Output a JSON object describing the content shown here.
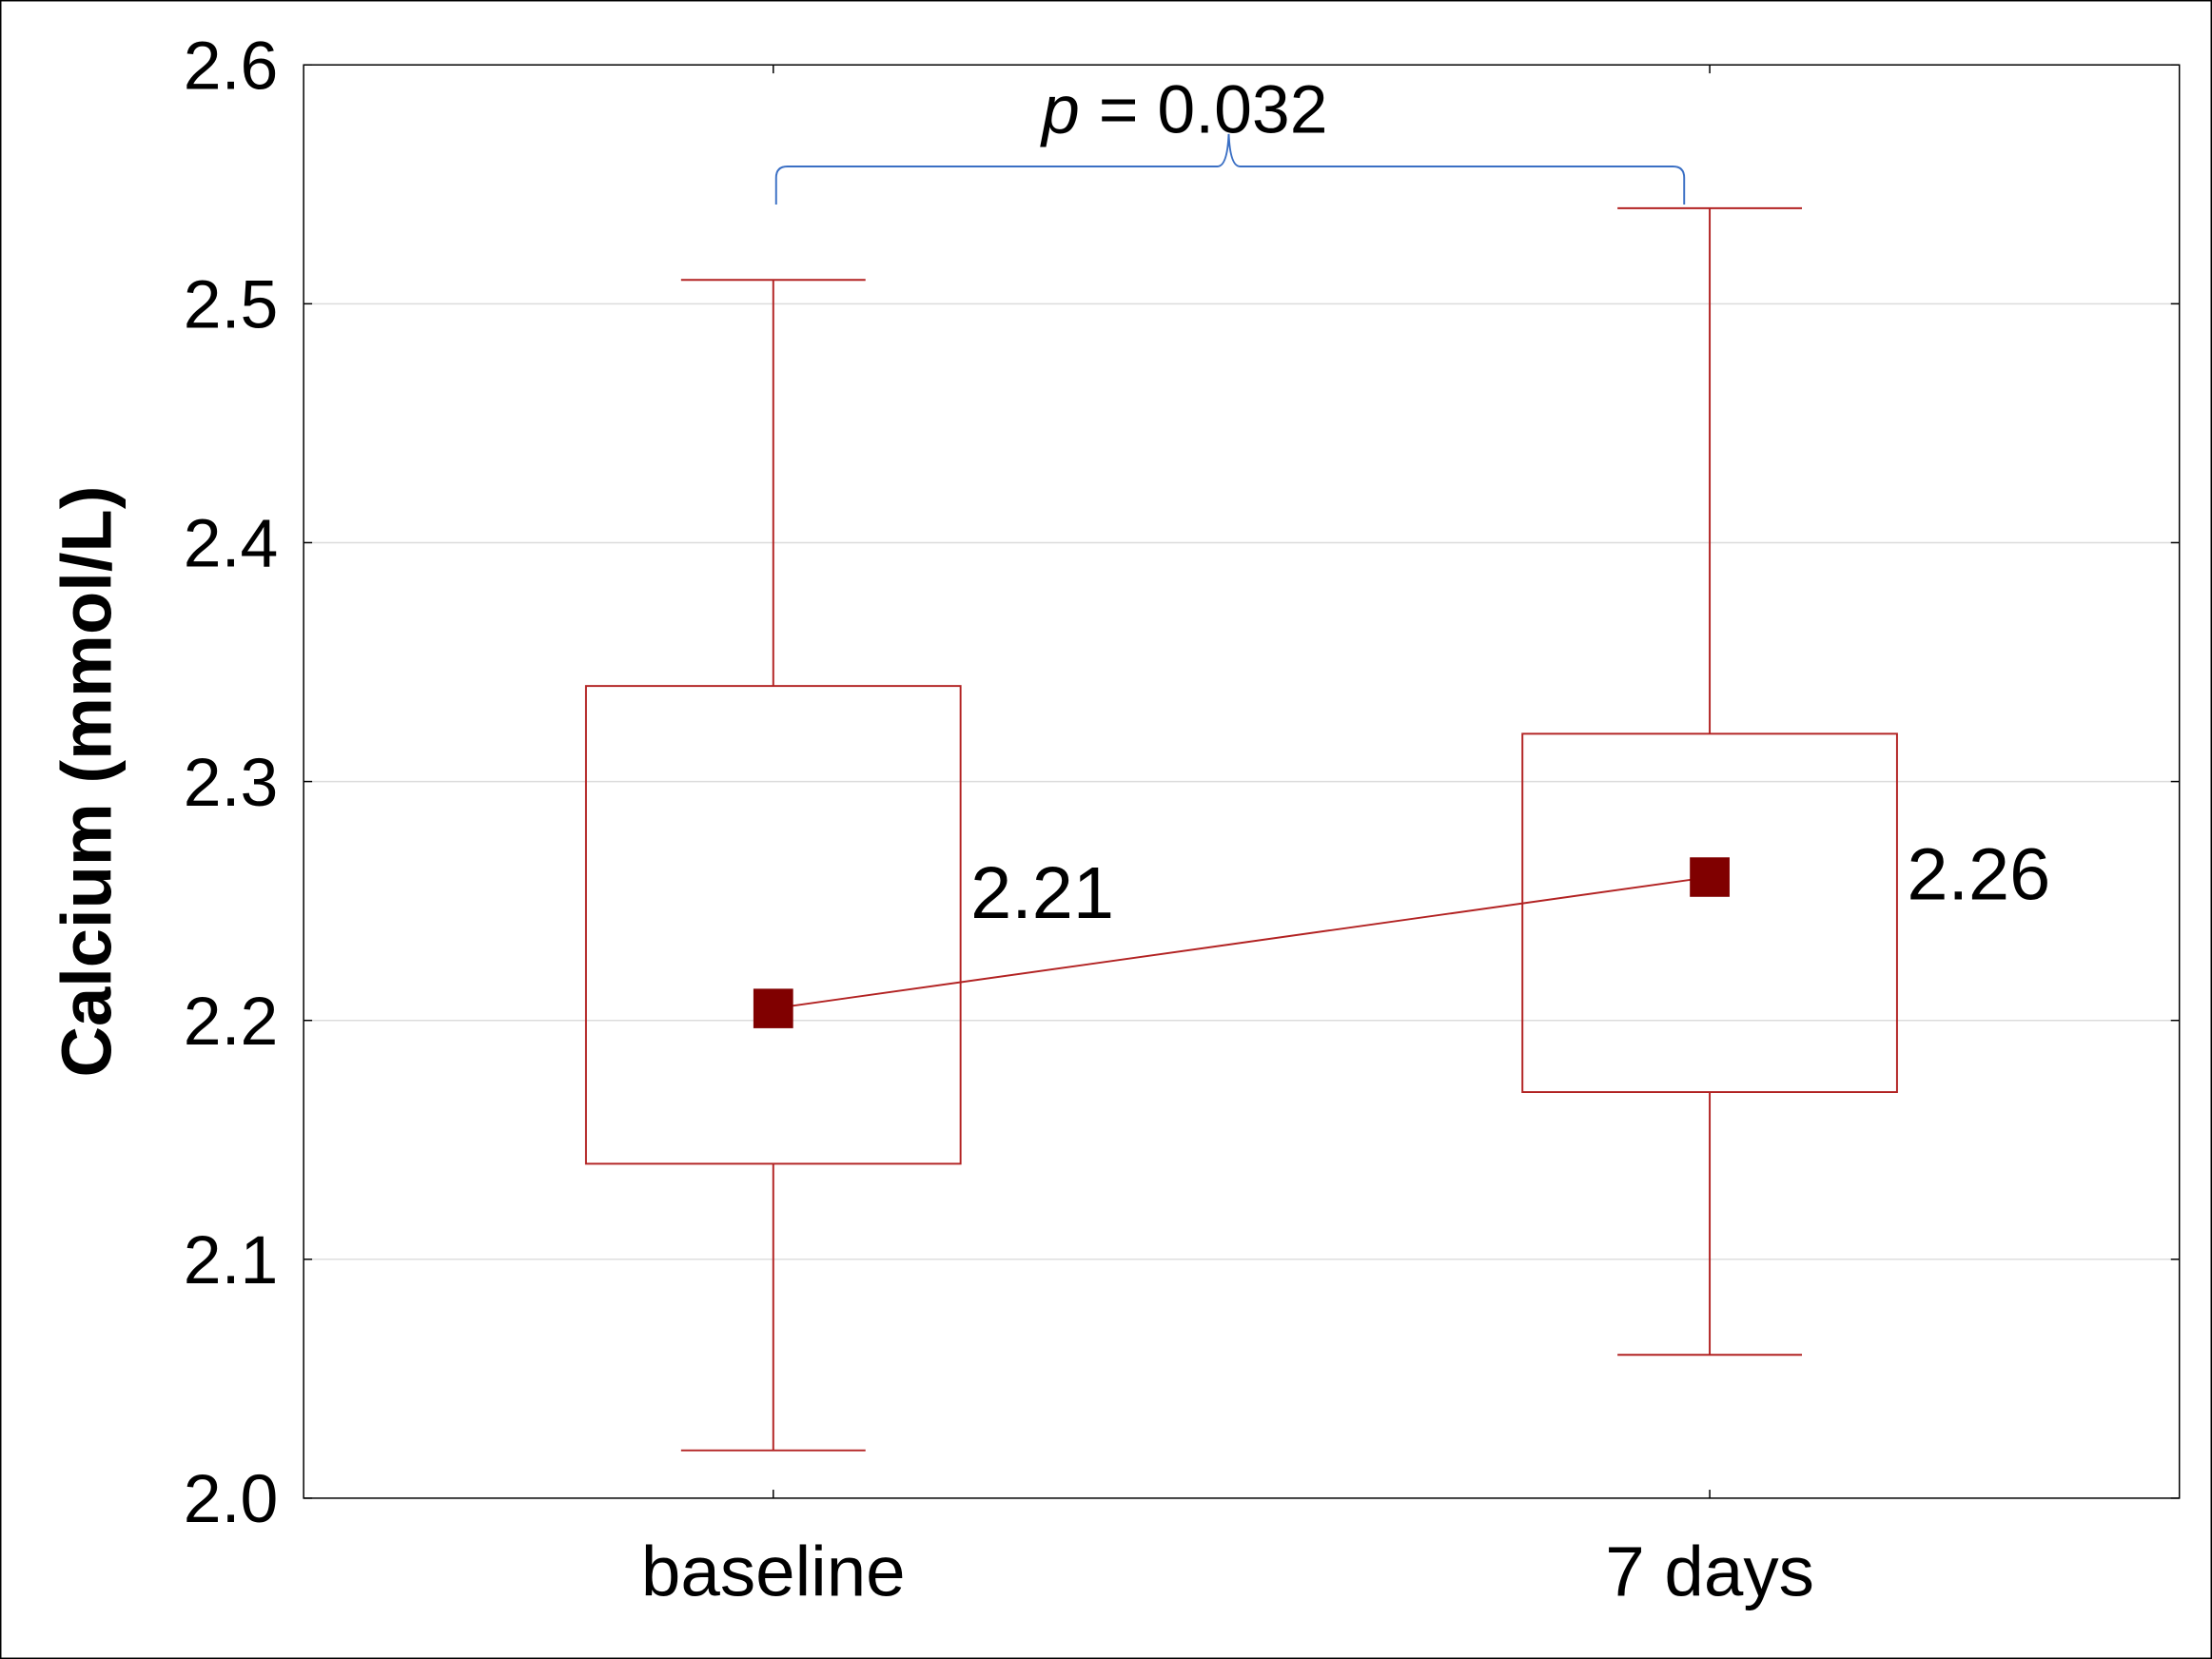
{
  "chart_data": {
    "type": "box",
    "title": "",
    "xlabel": "",
    "ylabel": "Calcium (mmol/L)",
    "ylim": [
      2.0,
      2.6
    ],
    "yticks": [
      "2.0",
      "2.1",
      "2.2",
      "2.3",
      "2.4",
      "2.5",
      "2.6"
    ],
    "ytick_values": [
      2.0,
      2.1,
      2.2,
      2.3,
      2.4,
      2.5,
      2.6
    ],
    "grid": true,
    "categories": [
      "baseline",
      "7 days"
    ],
    "series": [
      {
        "category": "baseline",
        "mean": 2.205,
        "mean_label": "2.21",
        "box_low": 2.14,
        "box_high": 2.34,
        "whisker_low": 2.02,
        "whisker_high": 2.51
      },
      {
        "category": "7 days",
        "mean": 2.26,
        "mean_label": "2.26",
        "box_low": 2.17,
        "box_high": 2.32,
        "whisker_low": 2.06,
        "whisker_high": 2.54
      }
    ],
    "annotation": {
      "p_symbol": "p",
      "p_text": " = 0.032"
    },
    "colors": {
      "box": "#b22222",
      "marker": "#800000",
      "bracket": "#3a6fc4",
      "grid": "#dcdcdc"
    }
  }
}
